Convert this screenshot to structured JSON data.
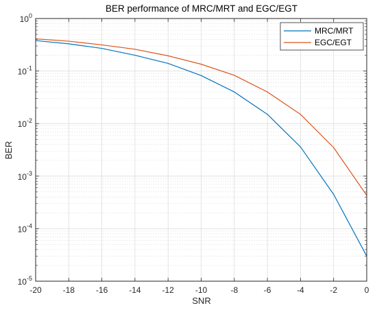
{
  "chart_data": {
    "type": "line",
    "title": "BER performance of MRC/MRT and EGC/EGT",
    "xlabel": "SNR",
    "ylabel": "BER",
    "xlim": [
      -20,
      0
    ],
    "ylim": [
      1e-05,
      1
    ],
    "yscale": "log",
    "grid": true,
    "minor_grid": true,
    "legend_position": "top-right",
    "x_ticks": [
      "-20",
      "-18",
      "-16",
      "-14",
      "-12",
      "-10",
      "-8",
      "-6",
      "-4",
      "-2",
      "0"
    ],
    "y_ticks": [
      {
        "base": "10",
        "exp": "-5"
      },
      {
        "base": "10",
        "exp": "-4"
      },
      {
        "base": "10",
        "exp": "-3"
      },
      {
        "base": "10",
        "exp": "-2"
      },
      {
        "base": "10",
        "exp": "-1"
      },
      {
        "base": "10",
        "exp": "0"
      }
    ],
    "x": [
      -20,
      -18,
      -16,
      -14,
      -12,
      -10,
      -8,
      -6,
      -4,
      -2,
      0
    ],
    "series": [
      {
        "name": "MRC/MRT",
        "color": "#0072bd",
        "values": [
          0.38,
          0.33,
          0.27,
          0.2,
          0.14,
          0.082,
          0.04,
          0.015,
          0.0036,
          0.00045,
          3e-05
        ]
      },
      {
        "name": "EGC/EGT",
        "color": "#d95319",
        "values": [
          0.41,
          0.37,
          0.315,
          0.26,
          0.195,
          0.135,
          0.083,
          0.04,
          0.015,
          0.0035,
          0.00043
        ]
      }
    ]
  }
}
